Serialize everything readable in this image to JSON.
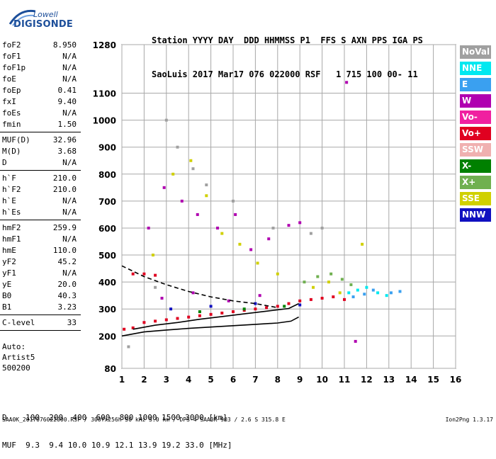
{
  "logo": {
    "line1": "Lowell",
    "line2": "DIGISONDE"
  },
  "header": {
    "line1": "Station YYYY DAY  DDD HHMMSS P1  FFS S AXN PPS IGA PS",
    "line2": "SaoLuis 2017 Mar17 076 022000 RSF   1 715 100 00- 11"
  },
  "params": [
    {
      "name": "foF2",
      "value": "8.950"
    },
    {
      "name": "foF1",
      "value": "N/A"
    },
    {
      "name": "foF1p",
      "value": "N/A"
    },
    {
      "name": "foE",
      "value": "N/A"
    },
    {
      "name": "foEp",
      "value": "0.41"
    },
    {
      "name": "fxI",
      "value": "9.40"
    },
    {
      "name": "foEs",
      "value": "N/A"
    },
    {
      "name": "fmin",
      "value": "1.50"
    },
    {
      "sep": true
    },
    {
      "name": "MUF(D)",
      "value": "32.96"
    },
    {
      "name": "M(D)",
      "value": "3.68"
    },
    {
      "name": "D",
      "value": "N/A"
    },
    {
      "sep": true
    },
    {
      "name": "h`F",
      "value": "210.0"
    },
    {
      "name": "h`F2",
      "value": "210.0"
    },
    {
      "name": "h`E",
      "value": "N/A"
    },
    {
      "name": "h`Es",
      "value": "N/A"
    },
    {
      "sep": true
    },
    {
      "name": "hmF2",
      "value": "259.9"
    },
    {
      "name": "hmF1",
      "value": "N/A"
    },
    {
      "name": "hmE",
      "value": "110.0"
    },
    {
      "name": "yF2",
      "value": "45.2"
    },
    {
      "name": "yF1",
      "value": "N/A"
    },
    {
      "name": "yE",
      "value": "20.0"
    },
    {
      "name": "B0",
      "value": "40.3"
    },
    {
      "name": "B1",
      "value": "3.23"
    },
    {
      "sep": true
    },
    {
      "name": "C-level",
      "value": "33"
    },
    {
      "sep": true
    }
  ],
  "auto": "Auto:\nArtist5\n500200",
  "bottom": {
    "line1": "D    100  200  400  600  800 1000 1500 3000 [km]",
    "line2": "MUF  9.3  9.4 10.0 10.9 12.1 13.9 19.2 33.0 [MHz]"
  },
  "footer": "SAA0K_2017076022000.RSF / 300fx256h 50 kHz 5.0 km / DPS-4 SAA0K 903 / 2.6 S 315.8 E",
  "footer_right": "Ion2Png 1.3.17",
  "legend": [
    {
      "label": "NoVal",
      "color": "#a0a0a0"
    },
    {
      "label": "NNE",
      "color": "#00e8f0"
    },
    {
      "label": "E",
      "color": "#3aa0f0"
    },
    {
      "label": "W",
      "color": "#b000b0"
    },
    {
      "label": "Vo-",
      "color": "#f020a0"
    },
    {
      "label": "Vo+",
      "color": "#e00020"
    },
    {
      "label": "SSW",
      "color": "#f0b0b0"
    },
    {
      "label": "X-",
      "color": "#008000"
    },
    {
      "label": "X+",
      "color": "#70b050"
    },
    {
      "label": "SSE",
      "color": "#d0d000"
    },
    {
      "label": "NNW",
      "color": "#1010c0"
    }
  ],
  "chart_data": {
    "type": "scatter",
    "title": "",
    "xlabel": "",
    "ylabel": "",
    "xlim": [
      1,
      16
    ],
    "ylim": [
      80,
      1280
    ],
    "x_ticks": [
      1,
      2,
      3,
      4,
      5,
      6,
      7,
      8,
      9,
      10,
      11,
      12,
      13,
      14,
      15,
      16
    ],
    "y_ticks": [
      80,
      200,
      300,
      400,
      500,
      600,
      700,
      800,
      900,
      1000,
      1100,
      1280
    ],
    "grid": true,
    "series": [
      {
        "name": "Vo+",
        "points": [
          [
            1.1,
            225
          ],
          [
            1.5,
            230
          ],
          [
            2.0,
            250
          ],
          [
            2.5,
            255
          ],
          [
            3.0,
            260
          ],
          [
            3.5,
            265
          ],
          [
            4.0,
            270
          ],
          [
            4.5,
            275
          ],
          [
            5.0,
            280
          ],
          [
            5.5,
            285
          ],
          [
            6.0,
            290
          ],
          [
            6.5,
            295
          ],
          [
            7.0,
            300
          ],
          [
            7.5,
            305
          ],
          [
            8.0,
            310
          ],
          [
            8.5,
            320
          ],
          [
            9.0,
            330
          ],
          [
            9.5,
            335
          ],
          [
            10.0,
            340
          ],
          [
            10.5,
            345
          ],
          [
            11.0,
            335
          ],
          [
            1.5,
            430
          ],
          [
            2.0,
            430
          ],
          [
            2.5,
            425
          ]
        ]
      },
      {
        "name": "W",
        "points": [
          [
            2.2,
            600
          ],
          [
            2.9,
            750
          ],
          [
            3.7,
            700
          ],
          [
            4.4,
            650
          ],
          [
            5.3,
            600
          ],
          [
            6.1,
            650
          ],
          [
            6.8,
            520
          ],
          [
            7.6,
            560
          ],
          [
            8.5,
            610
          ],
          [
            9.0,
            620
          ],
          [
            2.8,
            340
          ],
          [
            4.2,
            360
          ],
          [
            5.8,
            330
          ],
          [
            7.2,
            350
          ],
          [
            11.1,
            1140
          ],
          [
            11.5,
            180
          ]
        ]
      },
      {
        "name": "SSE",
        "points": [
          [
            2.4,
            500
          ],
          [
            3.3,
            800
          ],
          [
            4.1,
            850
          ],
          [
            4.8,
            720
          ],
          [
            5.5,
            580
          ],
          [
            6.3,
            540
          ],
          [
            7.1,
            470
          ],
          [
            8.0,
            430
          ],
          [
            9.6,
            380
          ],
          [
            10.3,
            400
          ],
          [
            10.8,
            360
          ],
          [
            11.8,
            540
          ]
        ]
      },
      {
        "name": "NoVal",
        "points": [
          [
            3.0,
            1000
          ],
          [
            4.2,
            820
          ],
          [
            4.8,
            760
          ],
          [
            6.0,
            700
          ],
          [
            7.8,
            600
          ],
          [
            9.5,
            580
          ],
          [
            3.5,
            900
          ],
          [
            2.5,
            380
          ],
          [
            10.0,
            600
          ],
          [
            1.3,
            160
          ]
        ]
      },
      {
        "name": "X+",
        "points": [
          [
            9.2,
            400
          ],
          [
            9.8,
            420
          ],
          [
            10.4,
            430
          ],
          [
            10.9,
            410
          ],
          [
            11.3,
            390
          ]
        ]
      },
      {
        "name": "NNE",
        "points": [
          [
            11.2,
            360
          ],
          [
            11.6,
            370
          ],
          [
            12.0,
            380
          ],
          [
            12.5,
            360
          ],
          [
            12.9,
            350
          ]
        ]
      },
      {
        "name": "E",
        "points": [
          [
            11.4,
            345
          ],
          [
            11.9,
            355
          ],
          [
            12.3,
            370
          ],
          [
            13.1,
            360
          ],
          [
            13.5,
            365
          ]
        ]
      },
      {
        "name": "NNW",
        "points": [
          [
            3.2,
            300
          ],
          [
            5.0,
            310
          ],
          [
            7.0,
            320
          ],
          [
            9.0,
            315
          ]
        ]
      },
      {
        "name": "X-",
        "points": [
          [
            4.5,
            290
          ],
          [
            6.5,
            300
          ],
          [
            8.3,
            310
          ]
        ]
      }
    ],
    "traces": [
      {
        "name": "profile",
        "color": "#000000",
        "points": [
          [
            1.0,
            200
          ],
          [
            2.0,
            215
          ],
          [
            3.0,
            222
          ],
          [
            4.0,
            228
          ],
          [
            5.0,
            233
          ],
          [
            6.0,
            238
          ],
          [
            7.0,
            243
          ],
          [
            8.0,
            248
          ],
          [
            8.6,
            255
          ],
          [
            8.95,
            270
          ]
        ]
      },
      {
        "name": "o-trace",
        "color": "#000000",
        "points": [
          [
            1.5,
            225
          ],
          [
            2.5,
            240
          ],
          [
            3.5,
            250
          ],
          [
            4.5,
            262
          ],
          [
            5.5,
            272
          ],
          [
            6.5,
            282
          ],
          [
            7.5,
            292
          ],
          [
            8.5,
            302
          ],
          [
            8.95,
            320
          ]
        ]
      },
      {
        "name": "dashed",
        "color": "#000000",
        "dashed": true,
        "points": [
          [
            1.0,
            460
          ],
          [
            2.0,
            420
          ],
          [
            3.0,
            390
          ],
          [
            4.0,
            365
          ],
          [
            5.0,
            345
          ],
          [
            6.0,
            330
          ],
          [
            7.0,
            320
          ],
          [
            8.0,
            305
          ]
        ]
      }
    ]
  }
}
